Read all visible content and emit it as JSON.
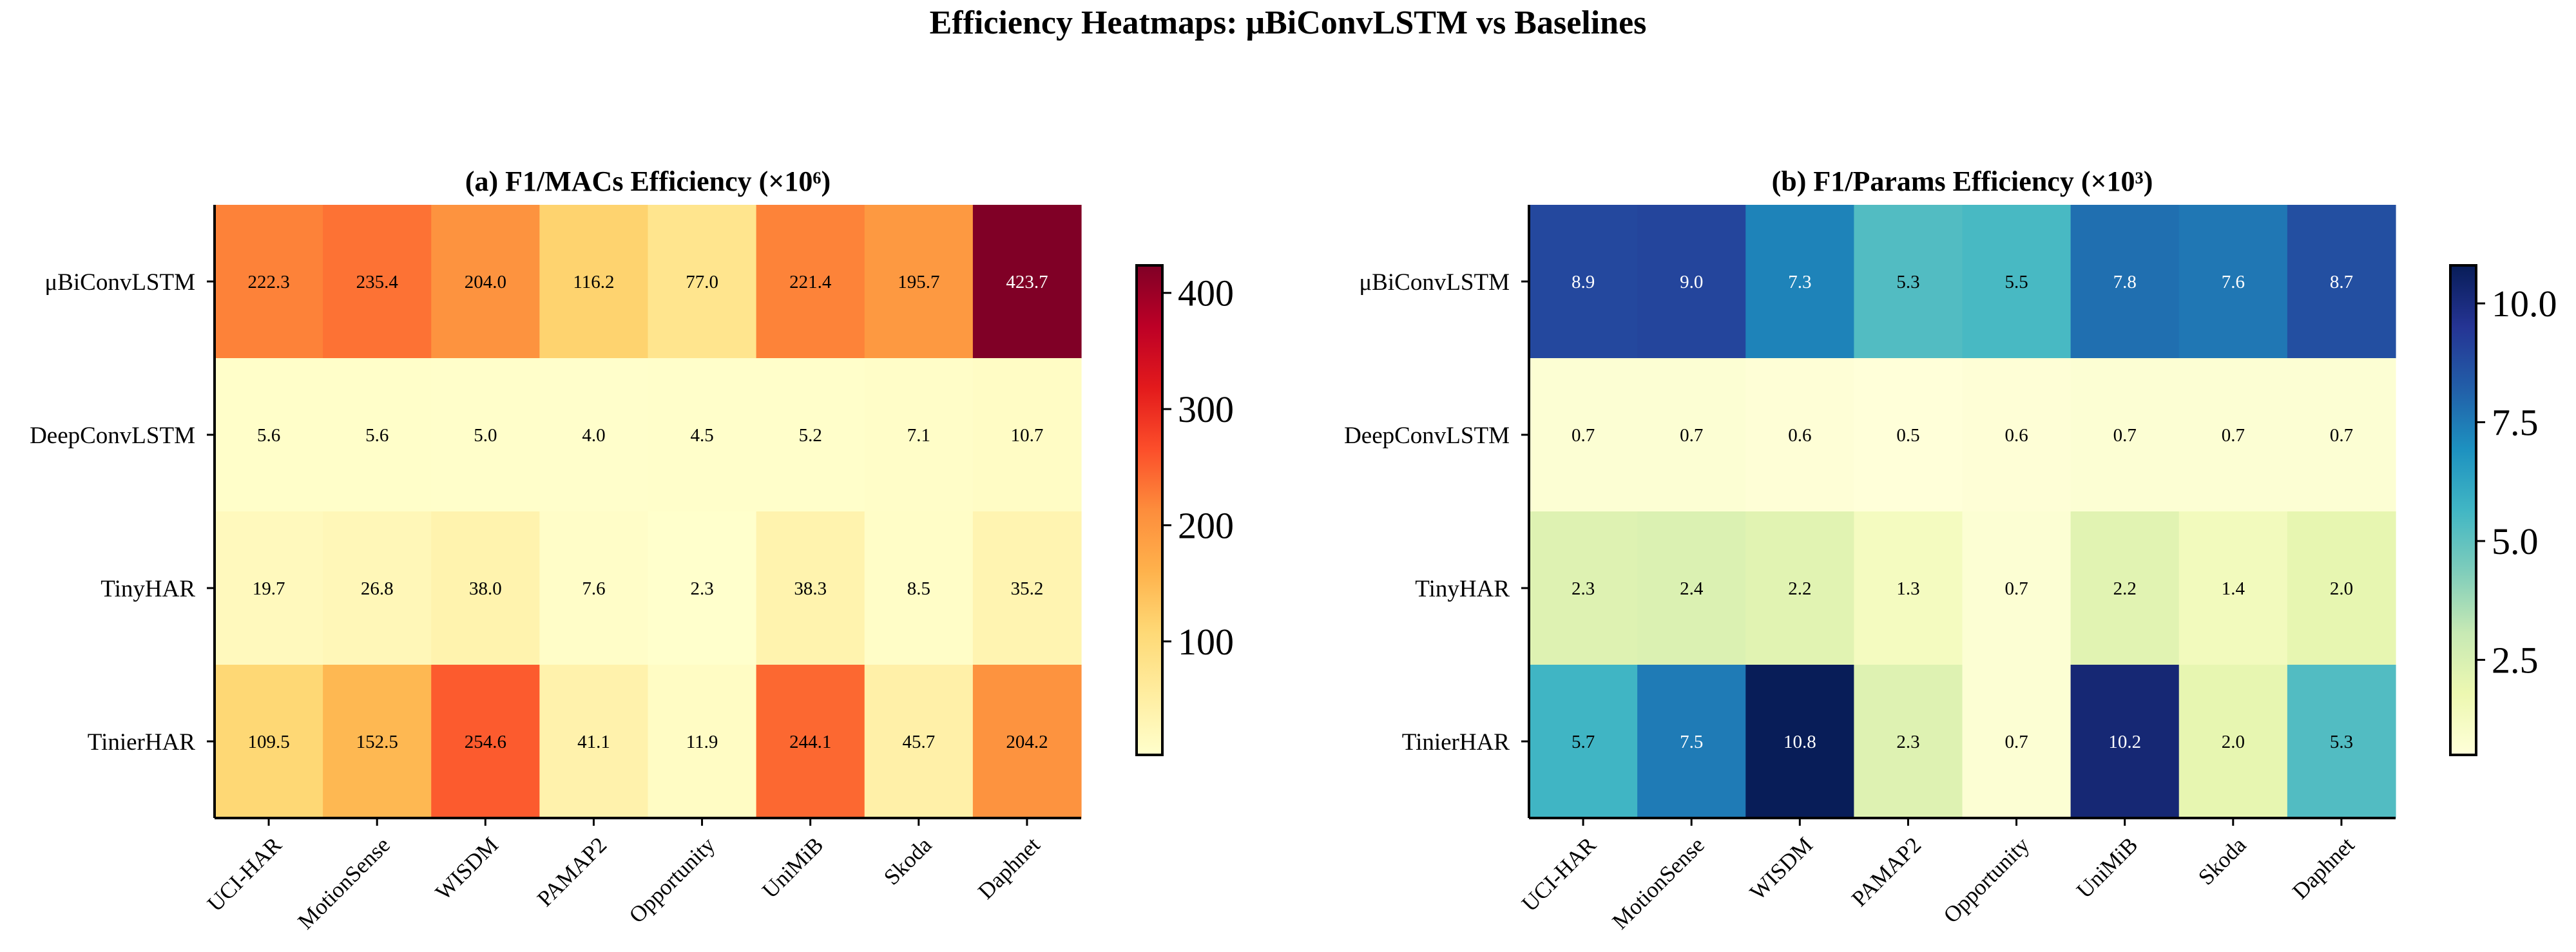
{
  "suptitle": "Efficiency Heatmaps: μBiConvLSTM vs Baselines",
  "chart_data": [
    {
      "type": "heatmap",
      "title": "(a) F1/MACs Efficiency (×10⁶)",
      "rows": [
        "μBiConvLSTM",
        "DeepConvLSTM",
        "TinyHAR",
        "TinierHAR"
      ],
      "columns": [
        "UCI-HAR",
        "MotionSense",
        "WISDM",
        "PAMAP2",
        "Opportunity",
        "UniMiB",
        "Skoda",
        "Daphnet"
      ],
      "values": [
        [
          222.3,
          235.4,
          204.0,
          116.2,
          77.0,
          221.4,
          195.7,
          423.7
        ],
        [
          5.6,
          5.6,
          5.0,
          4.0,
          4.5,
          5.2,
          7.1,
          10.7
        ],
        [
          19.7,
          26.8,
          38.0,
          7.6,
          2.3,
          38.3,
          8.5,
          35.2
        ],
        [
          109.5,
          152.5,
          254.6,
          41.1,
          11.9,
          244.1,
          45.7,
          204.2
        ]
      ],
      "colormap": "YlOrRd",
      "vmin": 2.3,
      "vmax": 423.7,
      "colorbar_ticks": [
        "100",
        "200",
        "300",
        "400"
      ]
    },
    {
      "type": "heatmap",
      "title": "(b) F1/Params Efficiency (×10³)",
      "rows": [
        "μBiConvLSTM",
        "DeepConvLSTM",
        "TinyHAR",
        "TinierHAR"
      ],
      "columns": [
        "UCI-HAR",
        "MotionSense",
        "WISDM",
        "PAMAP2",
        "Opportunity",
        "UniMiB",
        "Skoda",
        "Daphnet"
      ],
      "values": [
        [
          8.9,
          9.0,
          7.3,
          5.3,
          5.5,
          7.8,
          7.6,
          8.7
        ],
        [
          0.7,
          0.7,
          0.6,
          0.5,
          0.6,
          0.7,
          0.7,
          0.7
        ],
        [
          2.3,
          2.4,
          2.2,
          1.3,
          0.7,
          2.2,
          1.4,
          2.0
        ],
        [
          5.7,
          7.5,
          10.8,
          2.3,
          0.7,
          10.2,
          2.0,
          5.3
        ]
      ],
      "colormap": "YlGnBu",
      "vmin": 0.5,
      "vmax": 10.8,
      "colorbar_ticks": [
        "2.5",
        "5.0",
        "7.5",
        "10.0"
      ]
    }
  ]
}
